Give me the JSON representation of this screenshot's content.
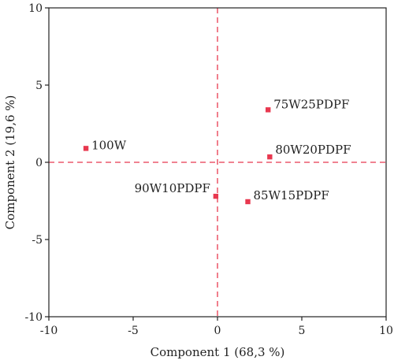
{
  "chart_data": {
    "type": "scatter",
    "title": "",
    "xlabel": "Component 1 (68,3 %)",
    "ylabel": "Component 2 (19,6 %)",
    "xlim": [
      -10,
      10
    ],
    "ylim": [
      -10,
      10
    ],
    "xticks": [
      -10,
      -5,
      0,
      5,
      10
    ],
    "yticks": [
      -10,
      -5,
      0,
      5,
      10
    ],
    "grid": false,
    "reference_lines": {
      "x": 0,
      "y": 0,
      "style": "dashed"
    },
    "points": [
      {
        "label": "100W",
        "x": -7.8,
        "y": 0.9
      },
      {
        "label": "75W25PDPF",
        "x": 3.0,
        "y": 3.4
      },
      {
        "label": "80W20PDPF",
        "x": 3.1,
        "y": 0.35
      },
      {
        "label": "90W10PDPF",
        "x": -0.1,
        "y": -2.2
      },
      {
        "label": "85W15PDPF",
        "x": 1.8,
        "y": -2.55
      }
    ],
    "colors": {
      "marker": "#e8384f",
      "reference_line": "#e8384f",
      "axis": "#222222"
    }
  }
}
